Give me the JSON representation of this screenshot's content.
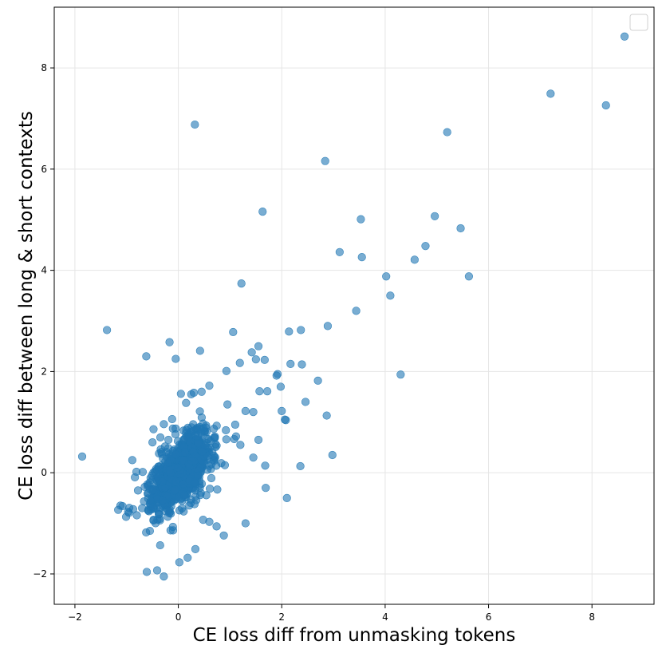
{
  "chart_data": {
    "type": "scatter",
    "title": "",
    "xlabel": "CE loss diff from unmasking tokens",
    "ylabel": "CE loss diff between long & short contexts",
    "xlim": [
      -2.4,
      9.2
    ],
    "ylim": [
      -2.6,
      9.2
    ],
    "xticks": [
      -2,
      0,
      2,
      4,
      6,
      8
    ],
    "xtick_labels": [
      "−2",
      "0",
      "2",
      "4",
      "6",
      "8"
    ],
    "yticks": [
      -2,
      0,
      2,
      4,
      6,
      8
    ],
    "ytick_labels": [
      "−2",
      "0",
      "2",
      "4",
      "6",
      "8"
    ],
    "grid": true,
    "legend": "top-right (empty)",
    "marker_color": "#1f77b4",
    "marker_alpha": 0.6,
    "outlier_points": [
      [
        8.63,
        8.62
      ],
      [
        7.2,
        7.49
      ],
      [
        8.27,
        7.26
      ],
      [
        5.2,
        6.73
      ],
      [
        0.32,
        6.88
      ],
      [
        2.84,
        6.16
      ],
      [
        1.63,
        5.16
      ],
      [
        3.53,
        5.01
      ],
      [
        4.96,
        5.07
      ],
      [
        5.46,
        4.83
      ],
      [
        4.78,
        4.48
      ],
      [
        3.12,
        4.36
      ],
      [
        3.55,
        4.26
      ],
      [
        4.57,
        4.21
      ],
      [
        5.62,
        3.88
      ],
      [
        4.02,
        3.88
      ],
      [
        4.1,
        3.5
      ],
      [
        1.22,
        3.74
      ],
      [
        3.44,
        3.2
      ],
      [
        2.89,
        2.9
      ],
      [
        -1.38,
        2.82
      ],
      [
        2.14,
        2.79
      ],
      [
        2.37,
        2.82
      ],
      [
        1.06,
        2.78
      ],
      [
        -0.17,
        2.58
      ],
      [
        -0.62,
        2.3
      ],
      [
        0.42,
        2.41
      ],
      [
        -0.05,
        2.25
      ],
      [
        1.42,
        2.38
      ],
      [
        1.55,
        2.5
      ],
      [
        1.5,
        2.24
      ],
      [
        1.67,
        2.23
      ],
      [
        2.17,
        2.15
      ],
      [
        2.39,
        2.14
      ],
      [
        1.19,
        2.17
      ],
      [
        0.93,
        2.01
      ],
      [
        4.3,
        1.94
      ],
      [
        1.92,
        1.95
      ],
      [
        1.9,
        1.92
      ],
      [
        2.7,
        1.82
      ],
      [
        1.98,
        1.7
      ],
      [
        1.72,
        1.61
      ],
      [
        1.57,
        1.61
      ],
      [
        2.46,
        1.4
      ],
      [
        2.0,
        1.22
      ],
      [
        2.87,
        1.13
      ],
      [
        2.08,
        1.04
      ],
      [
        2.06,
        1.05
      ],
      [
        -1.86,
        0.32
      ],
      [
        -0.89,
        0.25
      ],
      [
        2.98,
        0.35
      ],
      [
        2.36,
        0.13
      ],
      [
        1.68,
        0.14
      ],
      [
        1.69,
        -0.3
      ],
      [
        2.1,
        -0.5
      ],
      [
        1.3,
        -1.0
      ],
      [
        -1.08,
        -0.66
      ],
      [
        -1.12,
        -0.65
      ],
      [
        -0.61,
        -1.96
      ],
      [
        -0.41,
        -1.93
      ],
      [
        -0.28,
        -2.05
      ],
      [
        0.02,
        -1.77
      ],
      [
        0.18,
        -1.68
      ],
      [
        0.33,
        -1.51
      ],
      [
        0.88,
        -1.24
      ],
      [
        0.74,
        -1.06
      ],
      [
        0.6,
        -0.97
      ],
      [
        0.48,
        -0.93
      ],
      [
        0.92,
        0.84
      ],
      [
        1.1,
        0.95
      ],
      [
        0.95,
        1.35
      ],
      [
        1.3,
        1.22
      ],
      [
        1.45,
        1.2
      ],
      [
        1.55,
        0.65
      ],
      [
        1.2,
        0.55
      ],
      [
        1.45,
        0.3
      ],
      [
        0.9,
        0.15
      ],
      [
        -0.7,
        -0.7
      ],
      [
        -0.55,
        -1.15
      ],
      [
        -0.78,
        -0.35
      ],
      [
        -0.65,
        -0.28
      ],
      [
        -0.5,
        0.6
      ],
      [
        -0.28,
        0.96
      ],
      [
        -0.12,
        1.06
      ],
      [
        0.15,
        1.38
      ],
      [
        0.3,
        1.58
      ],
      [
        0.45,
        1.6
      ],
      [
        0.6,
        1.72
      ],
      [
        0.25,
        1.55
      ],
      [
        0.05,
        1.56
      ],
      [
        -0.48,
        0.86
      ]
    ]
  }
}
